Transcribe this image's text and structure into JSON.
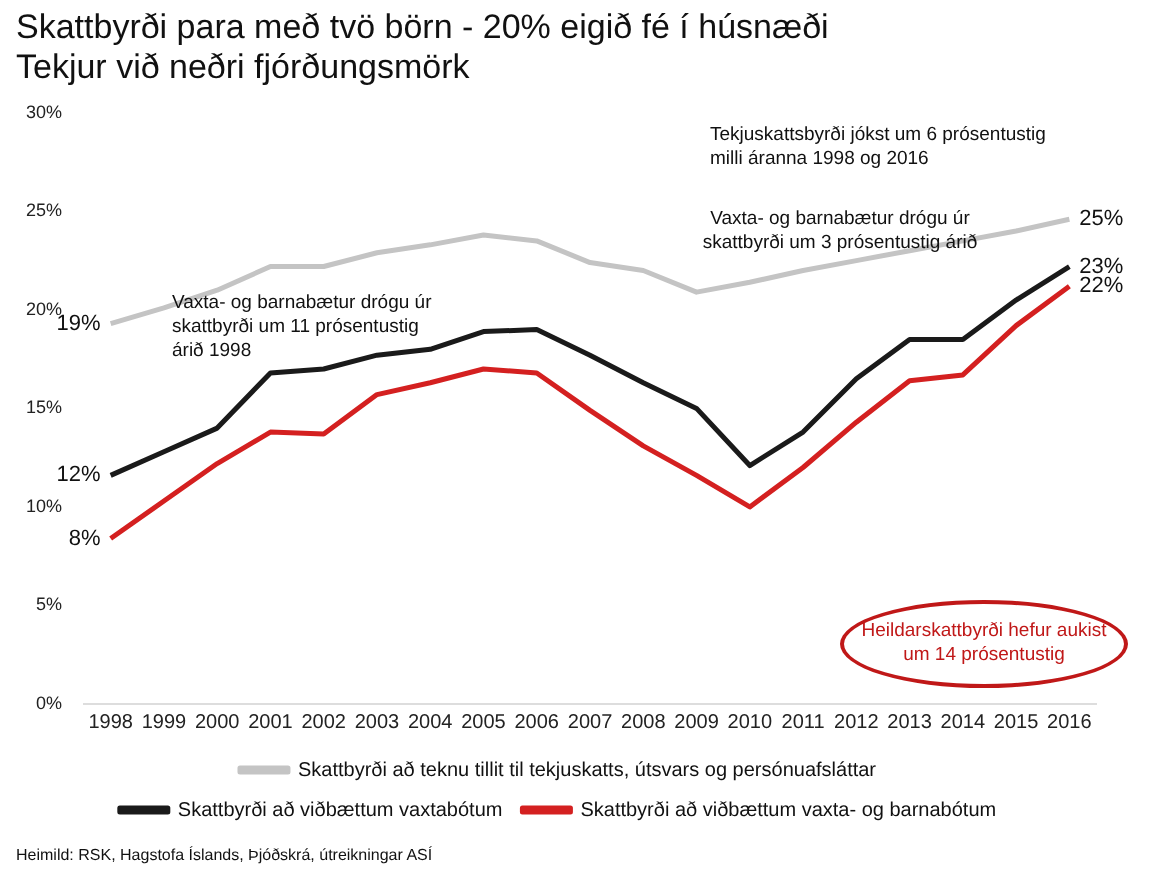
{
  "chart_data": {
    "type": "line",
    "title": "Skattbyrði para með tvö börn - 20% eigið fé í húsnæði",
    "subtitle": "Tekjur við neðri fjórðungsmörk",
    "categories": [
      "1998",
      "1999",
      "2000",
      "2001",
      "2002",
      "2003",
      "2004",
      "2005",
      "2006",
      "2007",
      "2008",
      "2009",
      "2010",
      "2011",
      "2012",
      "2013",
      "2014",
      "2015",
      "2016"
    ],
    "series": [
      {
        "name": "Skattbyrði að teknu tillit til tekjuskatts, útsvars og persónuafsláttar",
        "color": "#c4c4c4",
        "values": [
          19.3,
          20.1,
          21.0,
          22.2,
          22.2,
          22.9,
          23.3,
          23.8,
          23.5,
          22.4,
          22.0,
          20.9,
          21.4,
          22.0,
          22.5,
          23.0,
          23.5,
          24.0,
          24.6
        ]
      },
      {
        "name": "Skattbyrði að viðbættum vaxtabótum",
        "color": "#1a1a1a",
        "values": [
          11.6,
          12.8,
          14.0,
          16.8,
          17.0,
          17.7,
          18.0,
          18.9,
          19.0,
          17.7,
          16.3,
          15.0,
          12.1,
          13.8,
          16.5,
          18.5,
          18.5,
          20.5,
          22.2
        ]
      },
      {
        "name": "Skattbyrði að viðbættum vaxta- og barnabótum",
        "color": "#d42020",
        "values": [
          8.4,
          10.3,
          12.2,
          13.8,
          13.7,
          15.7,
          16.3,
          17.0,
          16.8,
          14.9,
          13.1,
          11.6,
          10.0,
          12.0,
          14.3,
          16.4,
          16.7,
          19.2,
          21.2
        ]
      }
    ],
    "ylim": [
      0,
      30
    ],
    "yticks": [
      {
        "value": 0,
        "label": "0%"
      },
      {
        "value": 5,
        "label": "5%"
      },
      {
        "value": 10,
        "label": "10%"
      },
      {
        "value": 15,
        "label": "15%"
      },
      {
        "value": 20,
        "label": "20%"
      },
      {
        "value": 25,
        "label": "25%"
      },
      {
        "value": 30,
        "label": "30%"
      }
    ],
    "grid": false,
    "legend": "bottom",
    "marker": "none",
    "line_style": "solid",
    "annotations": [
      {
        "text": "19%",
        "x": "1998",
        "y": 19.3
      },
      {
        "text": "12%",
        "x": "1998",
        "y": 11.6
      },
      {
        "text": "8%",
        "x": "1998",
        "y": 8.4
      },
      {
        "text": "25%",
        "x": "2016",
        "y": 24.6
      },
      {
        "text": "23%",
        "x": "2016",
        "y": 22.2
      },
      {
        "text": "22%",
        "x": "2016",
        "y": 21.2
      },
      "Tekjuskattsbyrði jókst um 6 prósentustig milli áranna 1998 og 2016",
      "Vaxta- og barnabætur drógu úr skattbyrði um 11 prósentustig árið 1998",
      "Vaxta- og barnabætur drógu úr skattbyrði um 3 prósentustig árið",
      "Heildarskattbyrði hefur aukist um 14 prósentustig",
      "Heimild: RSK, Hagstofa Íslands, Þjóðskrá, útreikningar ASÍ"
    ]
  }
}
